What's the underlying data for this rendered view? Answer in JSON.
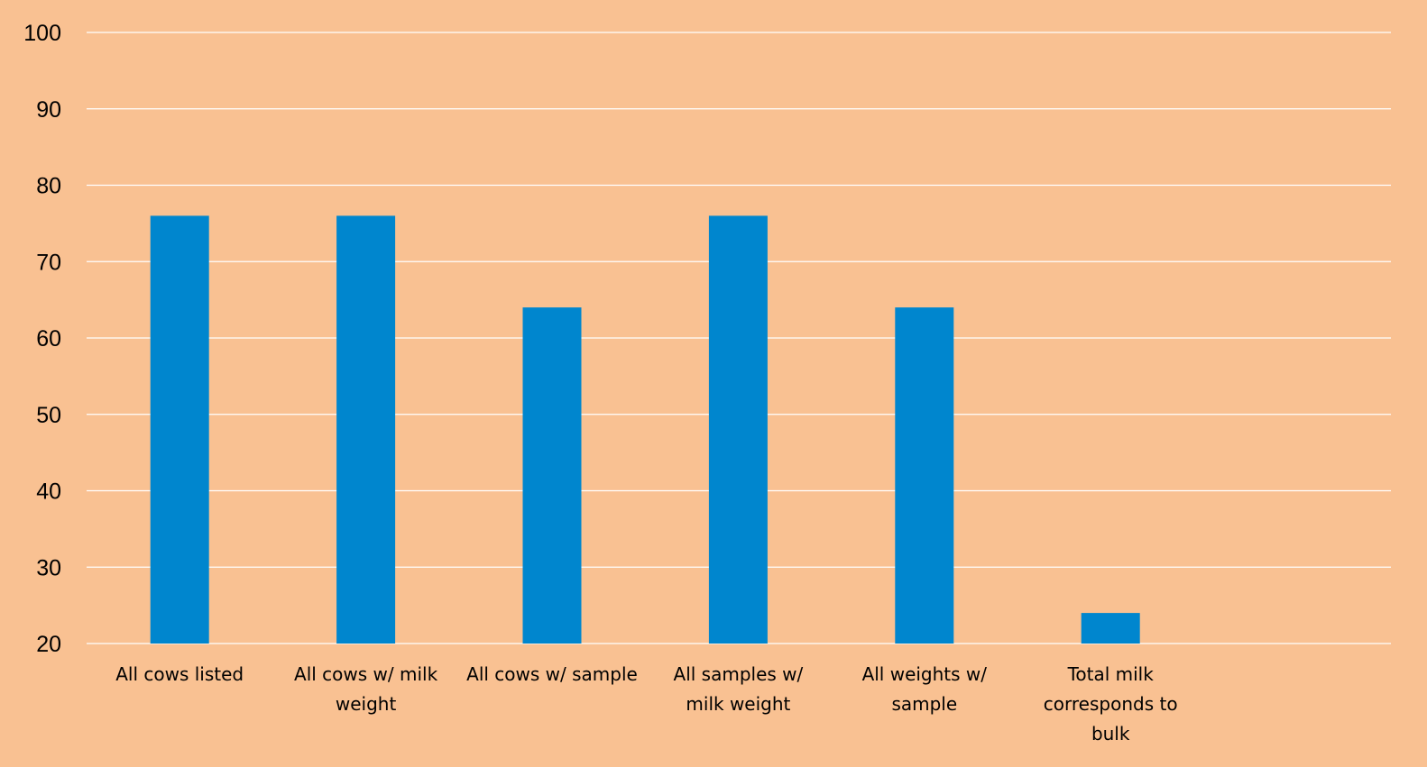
{
  "chart_data": {
    "type": "bar",
    "title": "",
    "xlabel": "",
    "ylabel": "",
    "categories": [
      "All cows listed",
      "All cows w/ milk weight",
      "All cows w/ sample",
      "All samples w/ milk weight",
      "All weights w/ sample",
      "Total milk corresponds to bulk"
    ],
    "category_lines": [
      [
        "All cows listed"
      ],
      [
        "All cows w/ milk",
        "weight"
      ],
      [
        "All cows w/ sample"
      ],
      [
        "All samples w/",
        "milk weight"
      ],
      [
        "All weights w/",
        "sample"
      ],
      [
        "Total milk",
        "corresponds to",
        "bulk"
      ]
    ],
    "values": [
      76,
      76,
      64,
      76,
      64,
      24
    ],
    "ylim": [
      20,
      100
    ],
    "yticks": [
      20,
      30,
      40,
      50,
      60,
      70,
      80,
      90,
      100
    ],
    "grid": true,
    "legend": "none",
    "colors": {
      "background": "#f9c192",
      "bar": "#0086ce",
      "gridline": "#ffffff",
      "text": "#000000"
    }
  }
}
